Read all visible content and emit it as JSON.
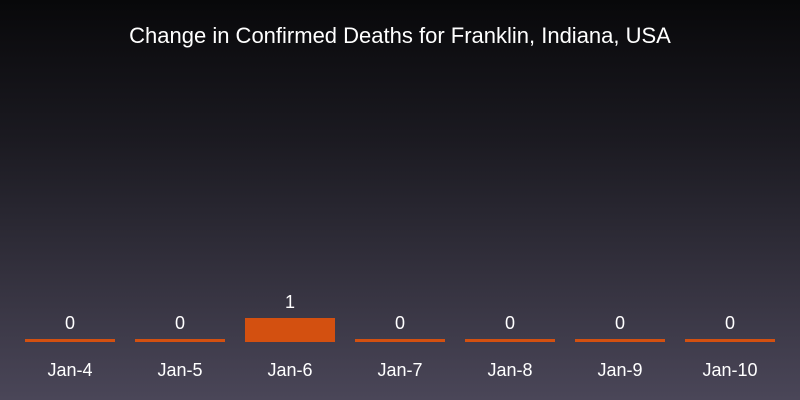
{
  "chart_data": {
    "type": "bar",
    "title": "Change in Confirmed Deaths for Franklin, Indiana, USA",
    "xlabel": "",
    "ylabel": "",
    "categories": [
      "Jan-4",
      "Jan-5",
      "Jan-6",
      "Jan-7",
      "Jan-8",
      "Jan-9",
      "Jan-10"
    ],
    "values": [
      0,
      0,
      1,
      0,
      0,
      0,
      0
    ],
    "data_labels": [
      "0",
      "0",
      "1",
      "0",
      "0",
      "0",
      "0"
    ],
    "ylim": [
      0,
      1
    ],
    "grid": false,
    "legend": "none",
    "colors": {
      "bar": "#d35010",
      "text": "#ffffff",
      "background_top": "#08080a",
      "background_bottom": "#4a4658"
    }
  }
}
